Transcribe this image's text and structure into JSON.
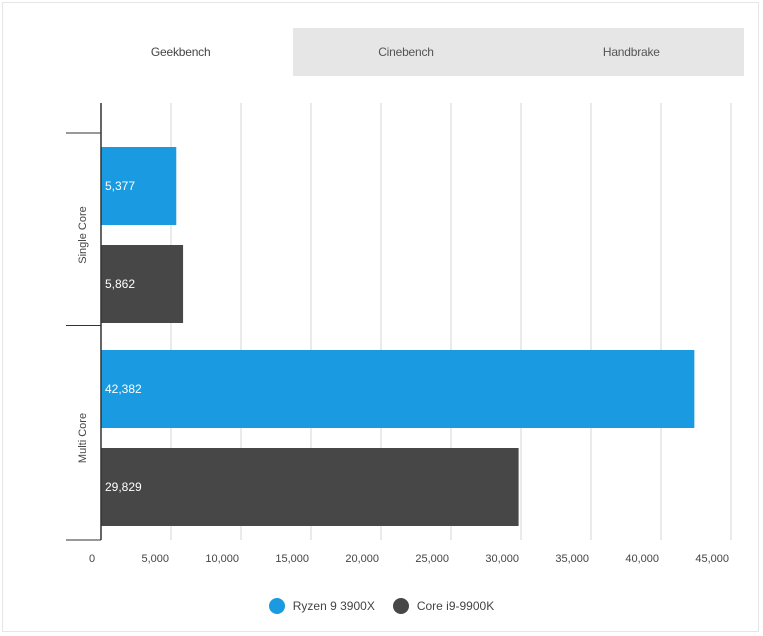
{
  "tabs": [
    {
      "label": "Geekbench",
      "active": true
    },
    {
      "label": "Cinebench",
      "active": false
    },
    {
      "label": "Handbrake",
      "active": false
    }
  ],
  "chart_data": {
    "type": "bar",
    "orientation": "horizontal",
    "categories": [
      "Single Core",
      "Multi Core"
    ],
    "series": [
      {
        "name": "Ryzen 9 3900X",
        "color": "#1a9ae0",
        "values": [
          5377,
          42382
        ],
        "labels": [
          "5,377",
          "42,382"
        ]
      },
      {
        "name": "Core i9-9900K",
        "color": "#474747",
        "values": [
          5862,
          29829
        ],
        "labels": [
          "5,862",
          "29,829"
        ]
      }
    ],
    "xlim": [
      0,
      45000
    ],
    "xticks": [
      0,
      5000,
      10000,
      15000,
      20000,
      25000,
      30000,
      35000,
      40000,
      45000
    ],
    "xtick_labels": [
      "0",
      "5,000",
      "10,000",
      "15,000",
      "20,000",
      "25,000",
      "30,000",
      "35,000",
      "40,000",
      "45,000"
    ],
    "grid": true,
    "legend_position": "bottom"
  }
}
